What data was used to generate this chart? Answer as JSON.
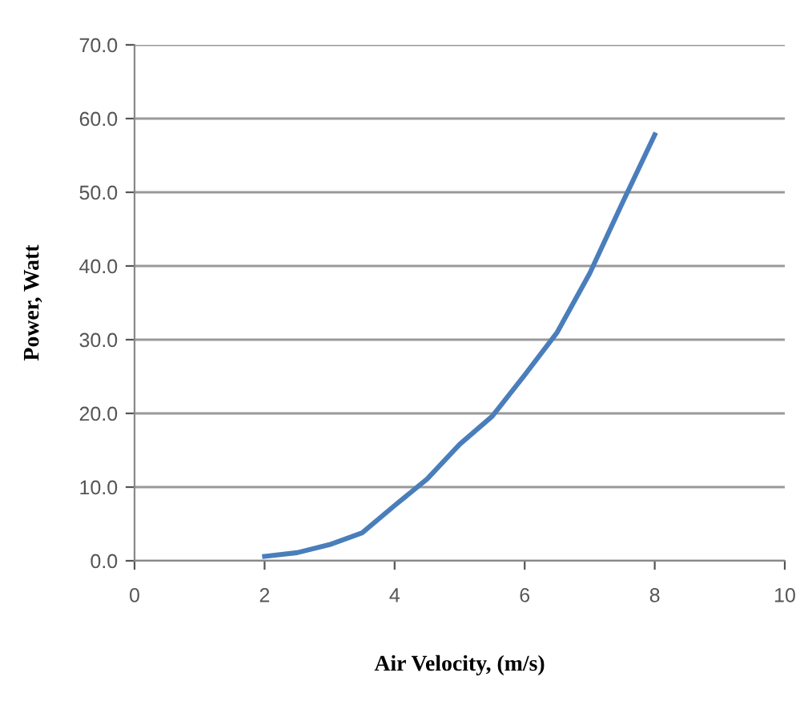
{
  "chart_data": {
    "type": "line",
    "xlabel": "Air Velocity, (m/s)",
    "ylabel": "Power, Watt",
    "x": [
      2,
      2.5,
      3,
      3.5,
      4,
      4.5,
      5,
      5.5,
      6,
      6.5,
      7,
      7.5,
      8
    ],
    "series": [
      {
        "color": "#4a7ebb",
        "values": [
          0.6,
          1.1,
          2.2,
          3.8,
          7.5,
          11.1,
          15.8,
          19.6,
          25.2,
          31.0,
          39.0,
          48.5,
          57.8
        ]
      }
    ],
    "xlim": [
      0,
      10
    ],
    "xticks": [
      0,
      2,
      4,
      6,
      8,
      10
    ],
    "ylim": [
      0,
      70
    ],
    "yticks": [
      {
        "value": 0,
        "label": "0.0"
      },
      {
        "value": 10,
        "label": "10.0"
      },
      {
        "value": 20,
        "label": "20.0"
      },
      {
        "value": 30,
        "label": "30.0"
      },
      {
        "value": 40,
        "label": "40.0"
      },
      {
        "value": 50,
        "label": "50.0"
      },
      {
        "value": 60,
        "label": "60.0"
      },
      {
        "value": 70,
        "label": "70.0"
      }
    ],
    "grid": "y",
    "marker": "none",
    "line_style": "solid"
  }
}
